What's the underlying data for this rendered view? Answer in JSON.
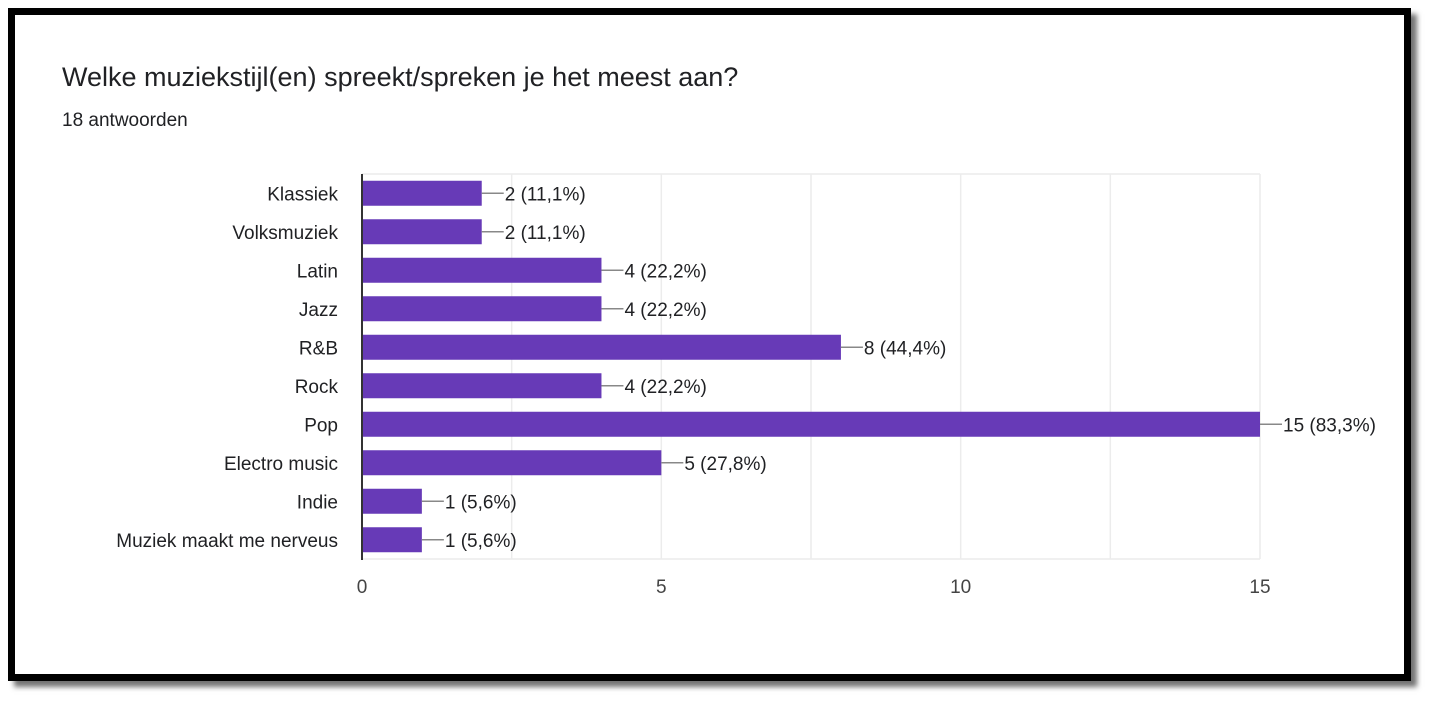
{
  "question": {
    "title": "Welke muziekstijl(en) spreekt/spreken je het meest aan?",
    "responses": "18 antwoorden"
  },
  "colors": {
    "bar": "#673ab7",
    "grid": "#ececec",
    "axis": "#333333",
    "text": "#202124",
    "leader": "#888888"
  },
  "chart_data": {
    "type": "bar",
    "orientation": "horizontal",
    "categories": [
      "Klassiek",
      "Volksmuziek",
      "Latin",
      "Jazz",
      "R&B",
      "Rock",
      "Pop",
      "Electro music",
      "Indie",
      "Muziek maakt me nerveus"
    ],
    "values": [
      2,
      2,
      4,
      4,
      8,
      4,
      15,
      5,
      1,
      1
    ],
    "data_labels": [
      "2 (11,1%)",
      "2 (11,1%)",
      "4 (22,2%)",
      "4 (22,2%)",
      "8 (44,4%)",
      "4 (22,2%)",
      "15 (83,3%)",
      "5 (27,8%)",
      "1 (5,6%)",
      "1 (5,6%)"
    ],
    "xlim": [
      0,
      15
    ],
    "x_ticks": [
      0,
      5,
      10,
      15
    ],
    "grid": true
  }
}
